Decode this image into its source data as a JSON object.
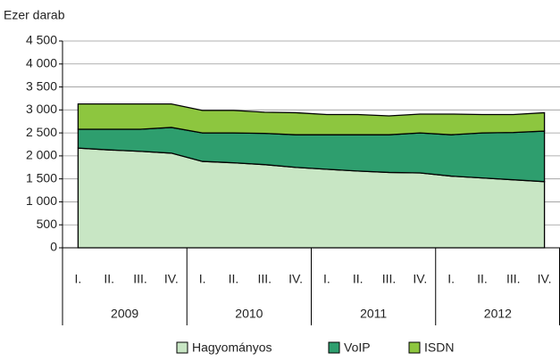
{
  "chart_data": {
    "type": "stacked-area",
    "y_label": "Ezer darab",
    "categories": [
      "I.",
      "II.",
      "III.",
      "IV.",
      "I.",
      "II.",
      "III.",
      "IV.",
      "I.",
      "II.",
      "III.",
      "IV.",
      "I.",
      "II.",
      "III.",
      "IV."
    ],
    "groups": [
      "2009",
      "2010",
      "2011",
      "2012"
    ],
    "series": [
      {
        "name": "Hagyományos",
        "color": "#c8e6c4",
        "values": [
          2170,
          2130,
          2100,
          2060,
          1880,
          1850,
          1810,
          1750,
          1710,
          1670,
          1640,
          1630,
          1560,
          1520,
          1480,
          1440
        ]
      },
      {
        "name": "VoIP",
        "color": "#2e9e6e",
        "values": [
          410,
          450,
          480,
          560,
          620,
          650,
          680,
          710,
          750,
          790,
          820,
          870,
          900,
          980,
          1030,
          1100
        ]
      },
      {
        "name": "ISDN",
        "color": "#8dc63f",
        "values": [
          550,
          550,
          550,
          510,
          490,
          490,
          460,
          480,
          440,
          440,
          410,
          410,
          450,
          400,
          390,
          400
        ]
      }
    ],
    "ylim": [
      0,
      4500
    ],
    "yticks": [
      0,
      500,
      {
        "value": 1000,
        "label": "1 000"
      },
      {
        "value": 1500,
        "label": "1 500"
      },
      {
        "value": 2000,
        "label": "2 000"
      },
      {
        "value": 2500,
        "label": "2 500"
      },
      {
        "value": 3000,
        "label": "3 000"
      },
      {
        "value": 3500,
        "label": "3 500"
      },
      {
        "value": 4000,
        "label": "4 000"
      },
      {
        "value": 4500,
        "label": "4 500"
      }
    ],
    "grid": true
  }
}
